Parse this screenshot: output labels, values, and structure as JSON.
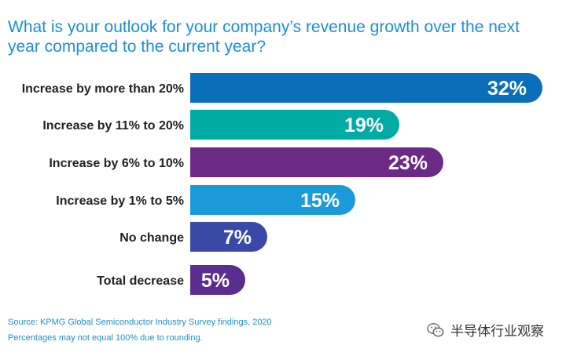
{
  "chart_data": {
    "type": "bar",
    "orientation": "horizontal",
    "title": "What is your outlook for your company’s revenue growth over the next year compared to the current year?",
    "categories": [
      "Increase by more than 20%",
      "Increase by 11% to 20%",
      "Increase by 6% to 10%",
      "Increase by 1% to 5%",
      "No change",
      "Total decrease"
    ],
    "values": [
      32,
      19,
      23,
      15,
      7,
      5
    ],
    "value_labels": [
      "32%",
      "19%",
      "23%",
      "15%",
      "7%",
      "5%"
    ],
    "colors": [
      "#0a6eb8",
      "#00aba4",
      "#6a2a86",
      "#1b9ad9",
      "#3a48a6",
      "#5b2d8e"
    ],
    "xlim": [
      0,
      32
    ],
    "grid": false
  },
  "footer": {
    "source": "Source: KPMG Global Semiconductor Industry Survey findings, 2020",
    "note": "Percentages may not equal 100% due to rounding."
  },
  "watermark": {
    "text": "半导体行业观察",
    "icon": "wechat-icon"
  }
}
